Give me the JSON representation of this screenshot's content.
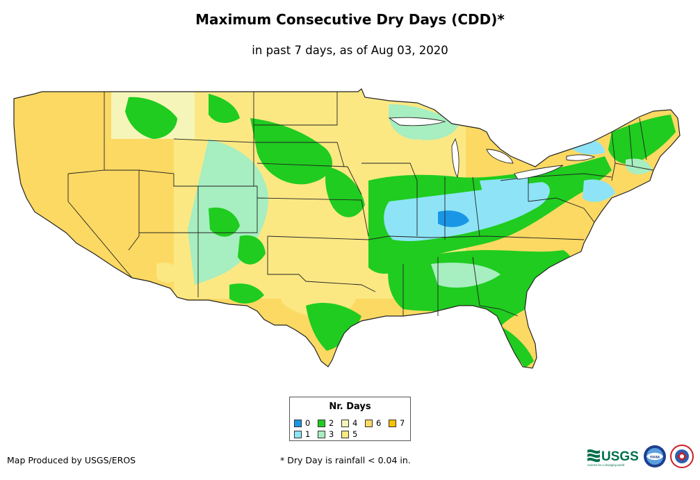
{
  "title": "Maximum Consecutive Dry Days (CDD)*",
  "subtitle": "in past 7 days, as of Aug 03, 2020",
  "legend": {
    "title": "Nr. Days",
    "items": [
      {
        "label": "0",
        "color": "#1a96e6"
      },
      {
        "label": "1",
        "color": "#8ee4f6"
      },
      {
        "label": "2",
        "color": "#1fcc1f"
      },
      {
        "label": "3",
        "color": "#a7eec0"
      },
      {
        "label": "4",
        "color": "#f6f5b9"
      },
      {
        "label": "5",
        "color": "#fbe883"
      },
      {
        "label": "6",
        "color": "#fcd963"
      },
      {
        "label": "7",
        "color": "#f8c200"
      }
    ]
  },
  "credit": "Map Produced by USGS/EROS",
  "footnote": "* Dry Day is rainfall < 0.04 in.",
  "logos": {
    "usgs_text": "USGS",
    "usgs_tagline": "science for a changing world",
    "noaa_text": "noaa"
  }
}
